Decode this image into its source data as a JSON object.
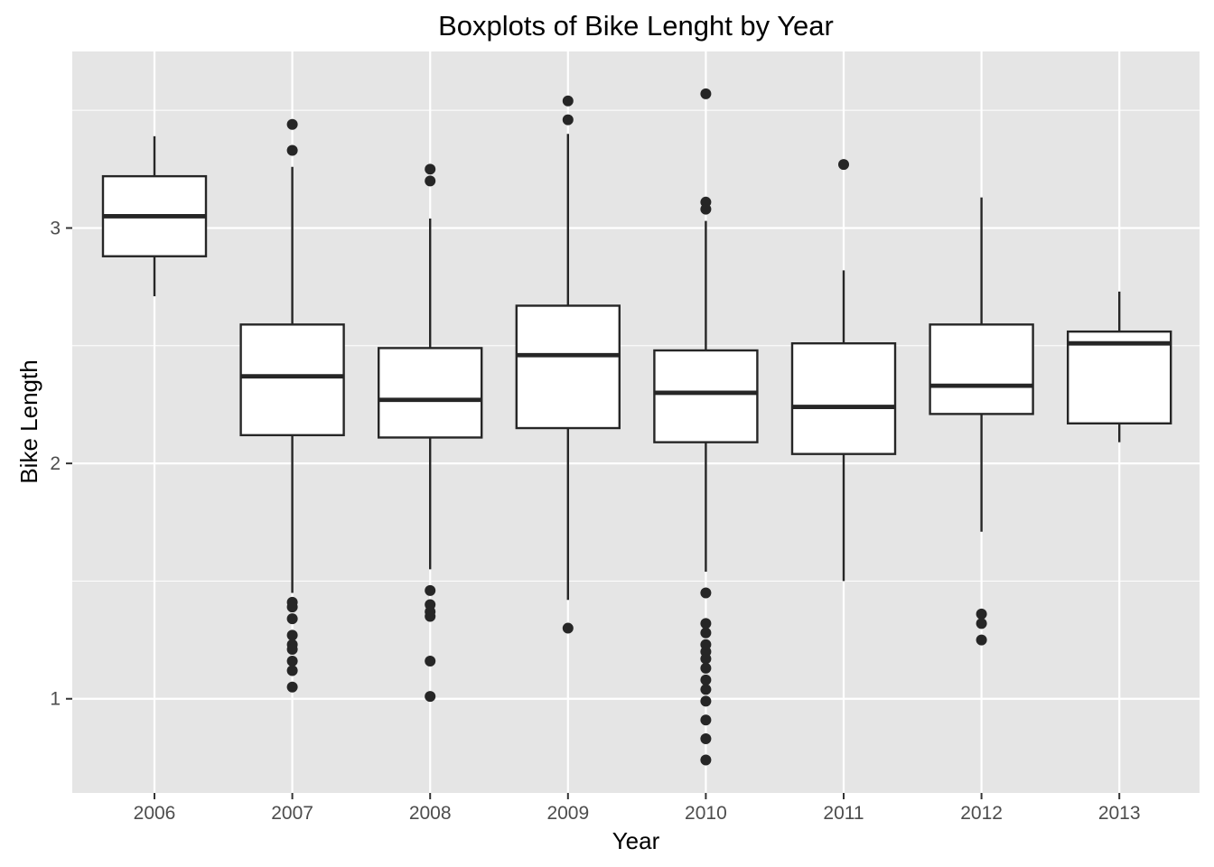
{
  "chart_data": {
    "type": "boxplot",
    "title": "Boxplots of Bike Lenght by Year",
    "xlabel": "Year",
    "ylabel": "Bike Length",
    "ylim": [
      0.6,
      3.75
    ],
    "yticks": [
      1,
      2,
      3
    ],
    "grid": true,
    "legend": "none",
    "colors": {
      "panel": "#e5e5e5",
      "grid": "#ffffff",
      "box_fill": "#ffffff",
      "box_stroke": "#262626",
      "outlier": "#262626",
      "tick_text": "#4d4d4d"
    },
    "categories": [
      "2006",
      "2007",
      "2008",
      "2009",
      "2010",
      "2011",
      "2012",
      "2013"
    ],
    "boxes": [
      {
        "category": "2006",
        "whisker_low": 2.71,
        "q1": 2.88,
        "median": 3.05,
        "q3": 3.22,
        "whisker_high": 3.39,
        "outliers": []
      },
      {
        "category": "2007",
        "whisker_low": 1.45,
        "q1": 2.12,
        "median": 2.37,
        "q3": 2.59,
        "whisker_high": 3.26,
        "outliers": [
          3.44,
          3.33,
          1.41,
          1.39,
          1.34,
          1.27,
          1.23,
          1.21,
          1.16,
          1.12,
          1.05
        ]
      },
      {
        "category": "2008",
        "whisker_low": 1.55,
        "q1": 2.11,
        "median": 2.27,
        "q3": 2.49,
        "whisker_high": 3.04,
        "outliers": [
          3.25,
          3.2,
          1.46,
          1.4,
          1.37,
          1.35,
          1.16,
          1.01
        ]
      },
      {
        "category": "2009",
        "whisker_low": 1.42,
        "q1": 2.15,
        "median": 2.46,
        "q3": 2.67,
        "whisker_high": 3.4,
        "outliers": [
          3.54,
          3.46,
          1.3
        ]
      },
      {
        "category": "2010",
        "whisker_low": 1.54,
        "q1": 2.09,
        "median": 2.3,
        "q3": 2.48,
        "whisker_high": 3.03,
        "outliers": [
          3.57,
          3.11,
          3.08,
          1.45,
          1.32,
          1.28,
          1.23,
          1.2,
          1.17,
          1.13,
          1.08,
          1.04,
          0.99,
          0.91,
          0.83,
          0.74
        ]
      },
      {
        "category": "2011",
        "whisker_low": 1.5,
        "q1": 2.04,
        "median": 2.24,
        "q3": 2.51,
        "whisker_high": 2.82,
        "outliers": [
          3.27
        ]
      },
      {
        "category": "2012",
        "whisker_low": 1.71,
        "q1": 2.21,
        "median": 2.33,
        "q3": 2.59,
        "whisker_high": 3.13,
        "outliers": [
          1.36,
          1.32,
          1.25
        ]
      },
      {
        "category": "2013",
        "whisker_low": 2.09,
        "q1": 2.17,
        "median": 2.51,
        "q3": 2.56,
        "whisker_high": 2.73,
        "outliers": []
      }
    ]
  }
}
